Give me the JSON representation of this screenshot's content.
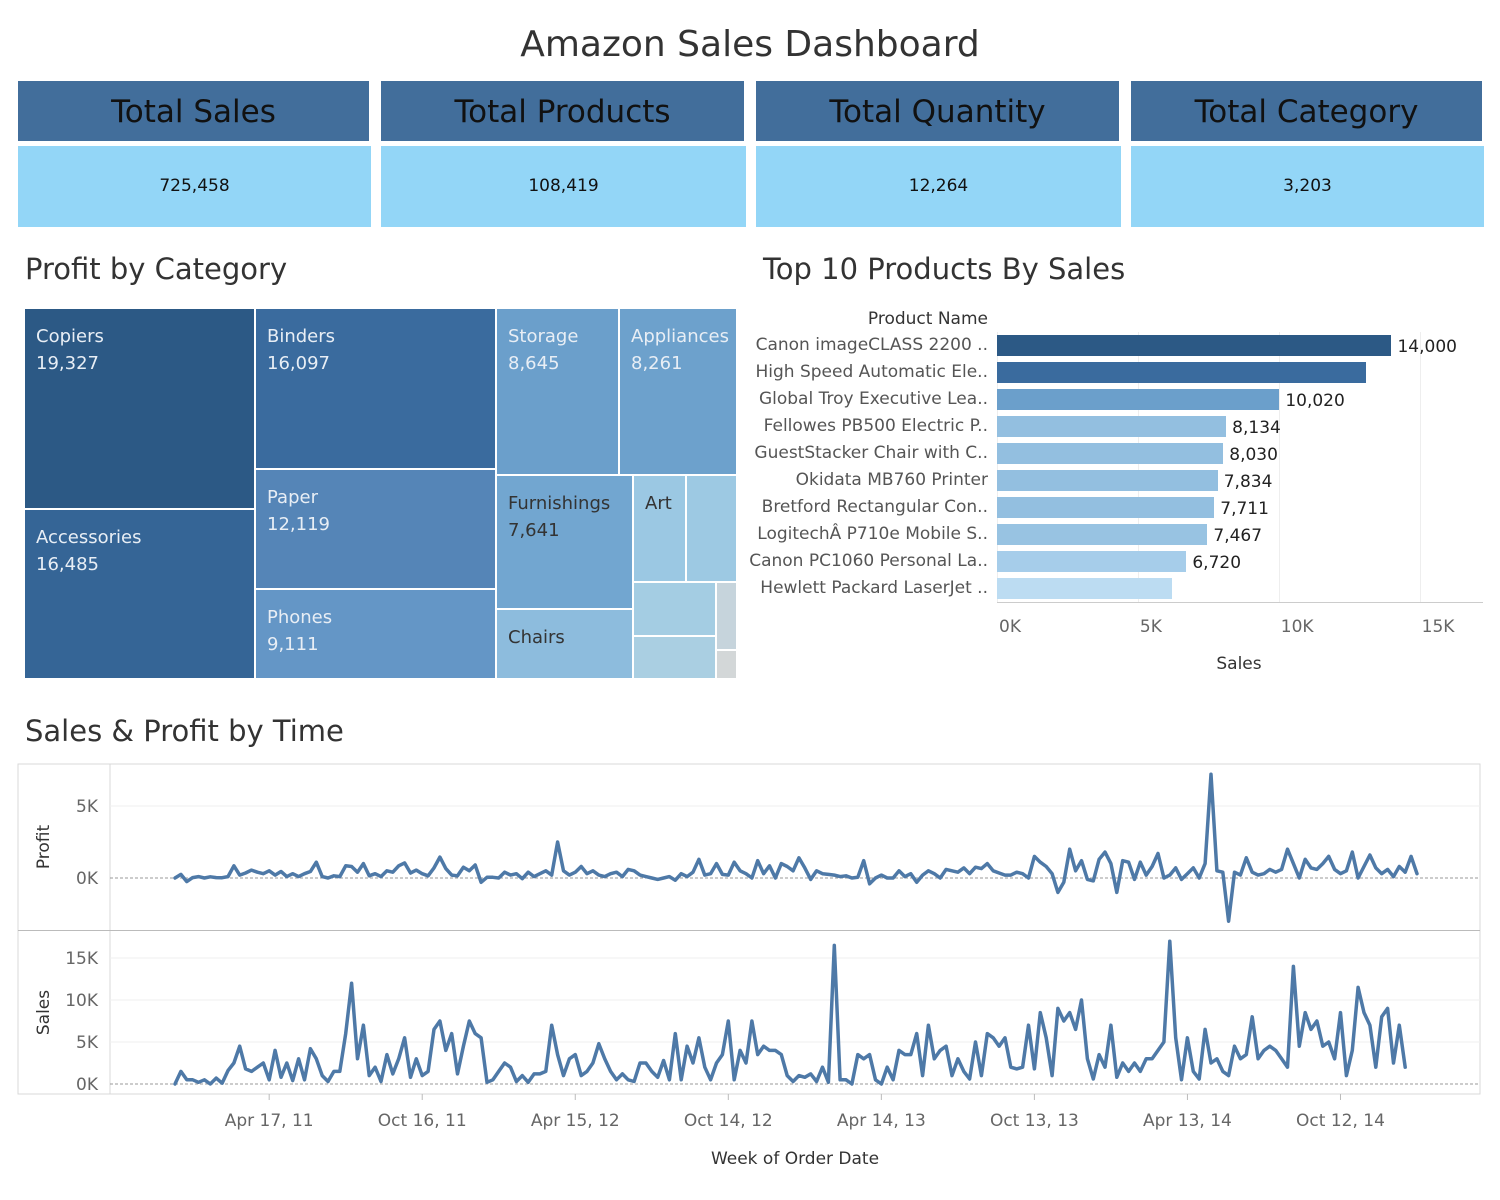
{
  "dashboard": {
    "title": "Amazon Sales Dashboard"
  },
  "kpis": [
    {
      "label": "Total Sales",
      "value": "725,458"
    },
    {
      "label": "Total Products",
      "value": "108,419"
    },
    {
      "label": "Total Quantity",
      "value": "12,264"
    },
    {
      "label": "Total Category",
      "value": "3,203"
    }
  ],
  "colors": {
    "kpi_header": "#426e9b",
    "kpi_value": "#93d6f7",
    "line": "#4e79a7"
  },
  "chart_data": [
    {
      "type": "treemap",
      "title": "Profit by Category",
      "cells": [
        {
          "name": "Copiers",
          "value": 19327,
          "label": "19,327",
          "color": "#2c5985"
        },
        {
          "name": "Accessories",
          "value": 16485,
          "label": "16,485",
          "color": "#356596"
        },
        {
          "name": "Binders",
          "value": 16097,
          "label": "16,097",
          "color": "#3a6b9e"
        },
        {
          "name": "Paper",
          "value": 12119,
          "label": "12,119",
          "color": "#5585b7"
        },
        {
          "name": "Phones",
          "value": 9111,
          "label": "9,111",
          "color": "#6496c6"
        },
        {
          "name": "Storage",
          "value": 8645,
          "label": "8,645",
          "color": "#6b9fcb"
        },
        {
          "name": "Appliances",
          "value": 8261,
          "label": "8,261",
          "color": "#6da1cc"
        },
        {
          "name": "Furnishings",
          "value": 7641,
          "label": "7,641",
          "color": "#72a6d0"
        },
        {
          "name": "Chairs",
          "value": null,
          "label": "",
          "color": "#8dbcdd"
        },
        {
          "name": "Art",
          "value": null,
          "label": "",
          "color": "#9bc8e3"
        },
        {
          "name": "",
          "value": null,
          "label": "",
          "color": "#9dc9e3"
        },
        {
          "name": "",
          "value": null,
          "label": "",
          "color": "#a4cde3"
        },
        {
          "name": "",
          "value": null,
          "label": "",
          "color": "#aacfe2"
        },
        {
          "name": "",
          "value": null,
          "label": "",
          "color": "#c6d4dc"
        },
        {
          "name": "",
          "value": null,
          "label": "",
          "color": "#d3d7d8"
        }
      ]
    },
    {
      "type": "bar",
      "orientation": "horizontal",
      "title": "Top 10 Products By Sales",
      "category_header": "Product Name",
      "xlabel": "Sales",
      "xlim": [
        0,
        17000
      ],
      "xticks": [
        {
          "value": 0,
          "label": "0K"
        },
        {
          "value": 5000,
          "label": "5K"
        },
        {
          "value": 10000,
          "label": "10K"
        },
        {
          "value": 15000,
          "label": "15K"
        }
      ],
      "categories": [
        "Canon imageCLASS 2200 ..",
        "High Speed Automatic Ele..",
        "Global Troy Executive Lea..",
        "Fellowes PB500 Electric P..",
        "GuestStacker Chair with C..",
        "Okidata MB760 Printer",
        "Bretford Rectangular Con..",
        "LogitechÂ P710e Mobile S..",
        "Canon PC1060 Personal La..",
        "Hewlett Packard LaserJet .."
      ],
      "values": [
        14000,
        13100,
        10020,
        8134,
        8030,
        7834,
        7711,
        7467,
        6720,
        6200
      ],
      "value_labels": [
        "14,000",
        "",
        "10,020",
        "8,134",
        "8,030",
        "7,834",
        "7,711",
        "7,467",
        "6,720",
        ""
      ],
      "colors": [
        "#2c5985",
        "#3a6b9e",
        "#6b9fcb",
        "#93bfe0",
        "#93bfe0",
        "#93bfe0",
        "#93bfe0",
        "#98c3e2",
        "#a6cdea",
        "#bcdcf2"
      ]
    },
    {
      "type": "line",
      "title": "Sales & Profit by Time",
      "xlabel": "Week of Order Date",
      "xticks": [
        {
          "label": "Apr 17, 11",
          "week": 16
        },
        {
          "label": "Oct 16, 11",
          "week": 42
        },
        {
          "label": "Apr 15, 12",
          "week": 68
        },
        {
          "label": "Oct 14, 12",
          "week": 94
        },
        {
          "label": "Apr 14, 13",
          "week": 120
        },
        {
          "label": "Oct 13, 13",
          "week": 146
        },
        {
          "label": "Apr 13, 14",
          "week": 172
        },
        {
          "label": "Oct 12, 14",
          "week": 198
        }
      ],
      "panels": [
        {
          "name": "Profit",
          "ylabel": "Profit",
          "yticks": [
            {
              "value": 0,
              "label": "0K"
            },
            {
              "value": 5000,
              "label": "5K"
            }
          ],
          "ylim": [
            -3000,
            8000
          ],
          "values": [
            0,
            250,
            -250,
            30,
            100,
            0,
            80,
            30,
            20,
            100,
            850,
            200,
            350,
            550,
            400,
            300,
            500,
            200,
            450,
            100,
            300,
            100,
            300,
            450,
            1100,
            100,
            0,
            150,
            100,
            850,
            800,
            400,
            1000,
            150,
            300,
            100,
            500,
            400,
            850,
            1050,
            350,
            550,
            300,
            150,
            700,
            1450,
            650,
            200,
            150,
            750,
            500,
            900,
            -300,
            50,
            50,
            0,
            400,
            200,
            300,
            -50,
            400,
            100,
            300,
            500,
            200,
            2500,
            500,
            200,
            400,
            800,
            300,
            500,
            200,
            100,
            300,
            400,
            100,
            600,
            500,
            200,
            100,
            0,
            -100,
            0,
            100,
            -150,
            300,
            100,
            400,
            1300,
            200,
            300,
            1000,
            250,
            200,
            1100,
            500,
            300,
            0,
            1200,
            300,
            850,
            0,
            1000,
            800,
            500,
            1400,
            700,
            -100,
            500,
            300,
            250,
            200,
            100,
            150,
            0,
            50,
            1200,
            -400,
            0,
            200,
            0,
            0,
            500,
            100,
            300,
            -300,
            200,
            500,
            300,
            0,
            600,
            500,
            400,
            700,
            300,
            750,
            650,
            1000,
            500,
            350,
            200,
            200,
            400,
            300,
            0,
            1500,
            1100,
            800,
            300,
            -1000,
            -300,
            2000,
            500,
            1200,
            -100,
            -200,
            1300,
            1800,
            1000,
            -1000,
            1200,
            1100,
            -100,
            1100,
            200,
            800,
            1700,
            0,
            200,
            700,
            -100,
            300,
            700,
            0,
            1000,
            7200,
            500,
            400,
            -3000,
            400,
            200,
            1400,
            400,
            200,
            300,
            600,
            400,
            600,
            2000,
            1000,
            0,
            1300,
            700,
            600,
            1000,
            1500,
            600,
            300,
            500,
            1800,
            0,
            800,
            1600,
            700,
            300,
            600,
            100,
            800,
            400,
            1500,
            300
          ]
        },
        {
          "name": "Sales",
          "ylabel": "Sales",
          "yticks": [
            {
              "value": 0,
              "label": "0K"
            },
            {
              "value": 5000,
              "label": "5K"
            },
            {
              "value": 10000,
              "label": "10K"
            },
            {
              "value": 15000,
              "label": "15K"
            }
          ],
          "ylim": [
            -500,
            17500
          ],
          "values": [
            0,
            1500,
            500,
            500,
            200,
            500,
            0,
            700,
            100,
            1600,
            2500,
            4500,
            1800,
            1500,
            2000,
            2500,
            500,
            4000,
            800,
            2500,
            400,
            3000,
            500,
            4200,
            3000,
            1000,
            300,
            1500,
            1500,
            6000,
            12000,
            3000,
            7000,
            1000,
            2000,
            300,
            3500,
            1200,
            3000,
            5500,
            800,
            3000,
            1000,
            1500,
            6500,
            7500,
            4000,
            6000,
            1200,
            4500,
            7500,
            6000,
            5500,
            200,
            500,
            1500,
            2500,
            2000,
            300,
            1000,
            200,
            1200,
            1200,
            1500,
            7000,
            3500,
            1000,
            3000,
            3500,
            1000,
            1500,
            2500,
            4800,
            3000,
            1500,
            500,
            1200,
            500,
            300,
            2500,
            2500,
            1500,
            800,
            2800,
            500,
            6000,
            500,
            4500,
            2500,
            5500,
            2000,
            500,
            2500,
            3500,
            7500,
            500,
            4000,
            2500,
            7500,
            3500,
            4500,
            4000,
            4000,
            3500,
            1000,
            300,
            1000,
            800,
            1200,
            300,
            2000,
            200,
            16500,
            500,
            500,
            0,
            3500,
            3000,
            3500,
            500,
            0,
            2000,
            500,
            4000,
            3500,
            3500,
            6000,
            1000,
            7000,
            3000,
            4000,
            4500,
            1000,
            3000,
            1500,
            600,
            5000,
            1000,
            6000,
            5500,
            4500,
            5500,
            2000,
            1800,
            2000,
            7000,
            1800,
            8500,
            5500,
            1000,
            9000,
            7500,
            8500,
            6500,
            10000,
            3000,
            600,
            3500,
            2000,
            7000,
            800,
            2500,
            1500,
            2500,
            1500,
            3000,
            3000,
            4000,
            5000,
            17000,
            5500,
            500,
            5500,
            1500,
            600,
            6500,
            2500,
            3000,
            1500,
            1000,
            4500,
            3000,
            3500,
            8000,
            3000,
            4000,
            4500,
            4000,
            3000,
            2000,
            14000,
            4500,
            8500,
            6500,
            7500,
            4500,
            5000,
            3000,
            8500,
            1000,
            4000,
            11500,
            8500,
            7000,
            2000,
            8000,
            9000,
            2500,
            7000,
            2000
          ]
        }
      ]
    }
  ]
}
